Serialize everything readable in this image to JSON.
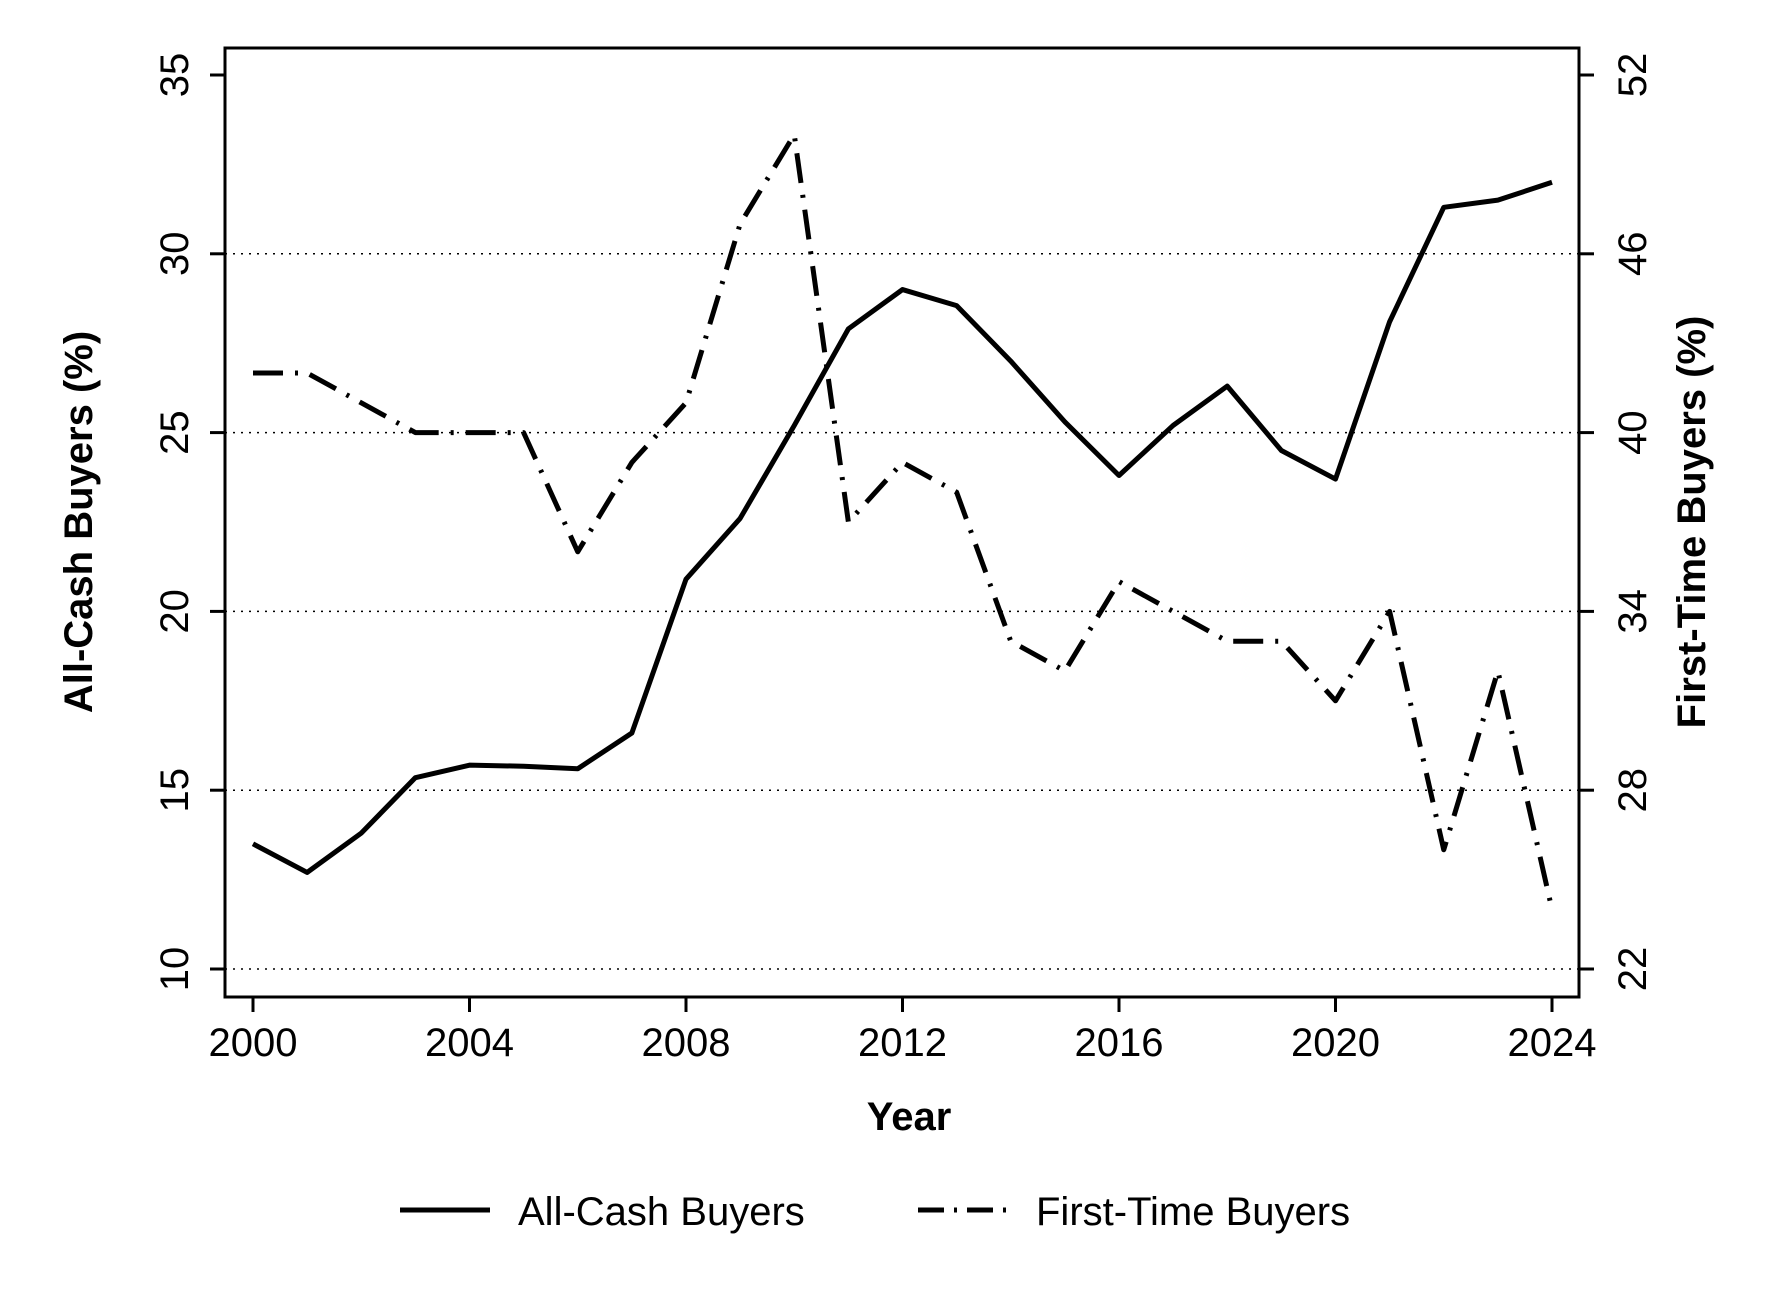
{
  "chart_data": {
    "type": "line",
    "title": "",
    "xlabel": "Year",
    "ylabel": "All-Cash Buyers (%)",
    "ylabel_right": "First-Time Buyers (%)",
    "xlim": [
      2000,
      2024
    ],
    "ylim": [
      10,
      35
    ],
    "ylim_right": [
      22,
      52
    ],
    "x_ticks": [
      "2000",
      "2004",
      "2008",
      "2012",
      "2016",
      "2020",
      "2024"
    ],
    "y_ticks": [
      "10",
      "15",
      "20",
      "25",
      "30",
      "35"
    ],
    "y_ticks_right": [
      "22",
      "28",
      "34",
      "40",
      "46",
      "52"
    ],
    "grid": "horizontal dotted at left-axis ticks 10-30",
    "legend_position": "bottom",
    "x": [
      2000,
      2001,
      2002,
      2003,
      2004,
      2005,
      2006,
      2007,
      2008,
      2009,
      2010,
      2011,
      2012,
      2013,
      2014,
      2015,
      2016,
      2017,
      2018,
      2019,
      2020,
      2021,
      2022,
      2023,
      2024
    ],
    "series": [
      {
        "name": "All-Cash Buyers",
        "axis": "left",
        "style": "solid",
        "values": [
          13.5,
          12.7,
          13.8,
          15.35,
          15.7,
          15.67,
          15.6,
          16.6,
          20.9,
          22.6,
          25.2,
          27.9,
          29.0,
          28.55,
          27.0,
          25.3,
          23.8,
          25.2,
          26.3,
          24.5,
          23.7,
          28.1,
          31.3,
          31.5,
          32.0
        ]
      },
      {
        "name": "First-Time Buyers",
        "axis": "right",
        "style": "dash-dot",
        "values": [
          42,
          42,
          41,
          40,
          40,
          40,
          36,
          39,
          41,
          47,
          50,
          37,
          39,
          38,
          33,
          32,
          35,
          34,
          33,
          33,
          31,
          34,
          26,
          32,
          24
        ]
      }
    ]
  }
}
